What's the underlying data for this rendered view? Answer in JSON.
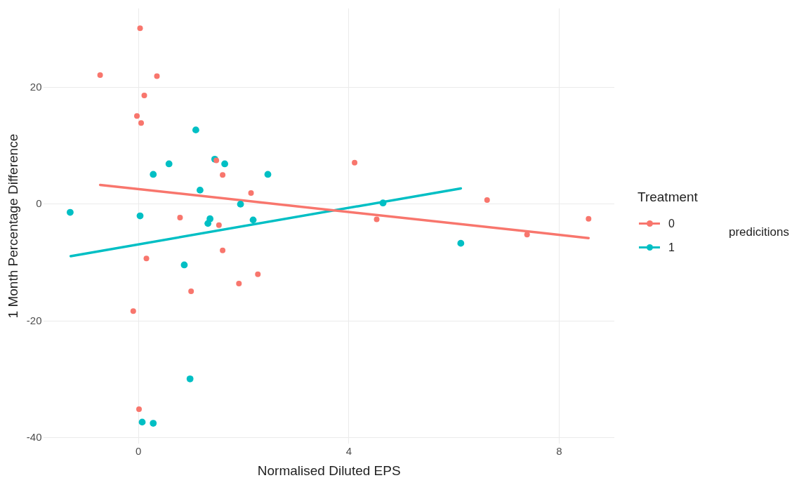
{
  "chart_data": {
    "type": "scatter",
    "xlabel": "Normalised Diluted EPS",
    "ylabel": "1 Month Percentage Difference",
    "legend_title": "Treatment",
    "legend": "right",
    "marker": "circle",
    "grid": true,
    "xlim": [
      -1.8,
      9.05
    ],
    "xticks": [
      0,
      4,
      8
    ],
    "ylim": [
      -41,
      33.5
    ],
    "yticks": [
      -40,
      -20,
      0,
      20
    ],
    "annotations": [
      "predicitions"
    ],
    "series": [
      {
        "name": "0",
        "color": "#f8766d",
        "x": [
          -0.73,
          0.03,
          0.35,
          0.11,
          -0.03,
          0.05,
          1.48,
          1.6,
          2.14,
          0.79,
          1.53,
          0.15,
          1.6,
          1.0,
          1.91,
          2.27,
          -0.1,
          0.01,
          4.11,
          4.53,
          6.63,
          7.39,
          8.56
        ],
        "values": [
          22.1,
          30.1,
          21.9,
          18.6,
          15.1,
          13.9,
          7.5,
          5.0,
          1.9,
          -2.3,
          -3.6,
          -9.3,
          -7.9,
          -14.9,
          -13.6,
          -12.0,
          -18.3,
          -35.1,
          7.1,
          -2.6,
          0.7,
          -5.2,
          -2.5
        ]
      },
      {
        "name": "1",
        "color": "#00bfc4",
        "x": [
          -1.3,
          0.03,
          1.09,
          0.58,
          0.28,
          1.45,
          1.64,
          2.46,
          1.17,
          1.94,
          1.36,
          1.32,
          2.18,
          0.87,
          0.98,
          0.07,
          0.28,
          4.65,
          6.13
        ],
        "values": [
          -1.4,
          -2.0,
          12.7,
          6.9,
          5.1,
          7.7,
          6.9,
          5.1,
          2.4,
          0.0,
          -2.5,
          -3.3,
          -2.7,
          -10.4,
          -29.9,
          -37.3,
          -37.5,
          0.2,
          -6.7
        ]
      },
      {
        "type": "line",
        "color": "#f8766d",
        "marker": "none",
        "x": [
          -0.73,
          8.56
        ],
        "values": [
          3.3,
          -5.8
        ]
      },
      {
        "type": "line",
        "color": "#00bfc4",
        "marker": "none",
        "x": [
          -1.29,
          6.13
        ],
        "values": [
          -8.9,
          2.7
        ]
      }
    ]
  }
}
